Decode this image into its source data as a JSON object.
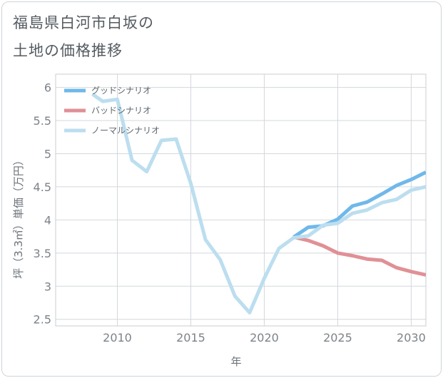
{
  "title_line1": "福島県白河市白坂の",
  "title_line2": "土地の価格推移",
  "chart_data": {
    "type": "line",
    "xlabel": "年",
    "ylabel": "坪（3.3㎡）単価（万円）",
    "xlim": [
      2005.8,
      2031
    ],
    "ylim": [
      2.4,
      6.2
    ],
    "x_ticks": [
      2010,
      2015,
      2020,
      2025,
      2030
    ],
    "y_ticks": [
      2.5,
      3,
      3.5,
      4,
      4.5,
      5,
      5.5,
      6
    ],
    "x_tick_labels": [
      "2010",
      "2015",
      "2020",
      "2025",
      "2030"
    ],
    "y_tick_labels": [
      "2.5",
      "3",
      "3.5",
      "4",
      "4.5",
      "5",
      "5.5",
      "6"
    ],
    "grid": true,
    "legend_position": "top-left",
    "series": [
      {
        "name": "グッドシナリオ",
        "color": "#6fb8ea",
        "x": [
          2022,
          2023,
          2024,
          2025,
          2026,
          2027,
          2028,
          2029,
          2030,
          2031
        ],
        "y": [
          3.74,
          3.89,
          3.91,
          4.01,
          4.21,
          4.27,
          4.39,
          4.52,
          4.61,
          4.72
        ]
      },
      {
        "name": "バッドシナリオ",
        "color": "#e09096",
        "x": [
          2022,
          2023,
          2024,
          2025,
          2026,
          2027,
          2028,
          2029,
          2030,
          2031
        ],
        "y": [
          3.74,
          3.69,
          3.61,
          3.5,
          3.46,
          3.41,
          3.39,
          3.28,
          3.22,
          3.17
        ]
      },
      {
        "name": "ノーマルシナリオ",
        "color": "#bcdeef",
        "x": [
          2008.3,
          2009,
          2010,
          2011,
          2012,
          2013,
          2014,
          2015,
          2016,
          2017,
          2018,
          2019,
          2020,
          2021,
          2022,
          2023,
          2024,
          2025,
          2026,
          2027,
          2028,
          2029,
          2030,
          2031
        ],
        "y": [
          5.9,
          5.79,
          5.82,
          4.9,
          4.73,
          5.2,
          5.22,
          4.55,
          3.7,
          3.4,
          2.85,
          2.6,
          3.12,
          3.57,
          3.73,
          3.76,
          3.92,
          3.95,
          4.1,
          4.15,
          4.26,
          4.31,
          4.45,
          4.5
        ]
      }
    ]
  }
}
